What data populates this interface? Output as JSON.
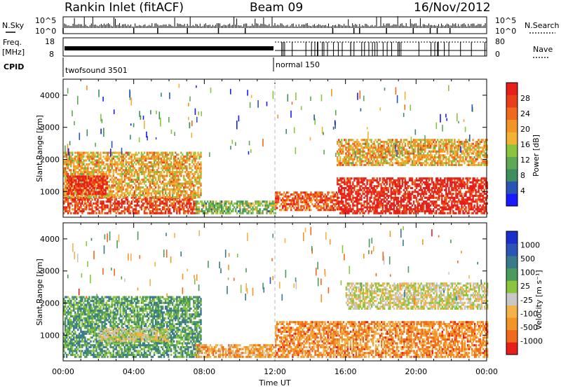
{
  "header": {
    "radar": "Rankin Inlet (fitACF)",
    "beam": "Beam 09",
    "date": "16/Nov/2012"
  },
  "noise_panel": {
    "left_label": "N.Sky",
    "right_label": "N.Search",
    "left_ticks": [
      "10^5",
      "10^0"
    ],
    "right_ticks": [
      "10^5",
      "10^0"
    ]
  },
  "freq_panel": {
    "left_label_line1": "Freq.",
    "left_label_line2": "[MHz]",
    "right_label": "Nave",
    "left_ticks": [
      "18",
      "8"
    ],
    "right_ticks": [
      "80",
      "0"
    ]
  },
  "cpid": {
    "label": "CPID",
    "modes": [
      "twofsound 3501",
      "normal 150"
    ]
  },
  "x_axis": {
    "label": "Time UT",
    "ticks": [
      "00:00",
      "04:00",
      "08:00",
      "12:00",
      "16:00",
      "20:00",
      "00:00"
    ]
  },
  "colors": {
    "power": [
      "#1a1aff",
      "#2a55b5",
      "#3e8e5e",
      "#5fa855",
      "#8bc53f",
      "#f2b233",
      "#f39426",
      "#ef6a1c",
      "#e8401a",
      "#e61f1a"
    ],
    "velocity": [
      "#e61f1a",
      "#ef6a1c",
      "#f39426",
      "#f4b24a",
      "#c8c8c8",
      "#8bc53f",
      "#4c9a5c",
      "#3a7a8a",
      "#2a55b5",
      "#1a2fcc"
    ]
  },
  "chart_data": [
    {
      "type": "heatmap",
      "name": "Power",
      "title": "",
      "xlabel": "Time UT",
      "ylabel": "Slant Range [km]",
      "xlim": [
        0,
        24
      ],
      "ylim": [
        200,
        4500
      ],
      "x_ticks": [
        "00:00",
        "04:00",
        "08:00",
        "12:00",
        "16:00",
        "20:00",
        "00:00"
      ],
      "y_ticks": [
        1000,
        2000,
        3000,
        4000
      ],
      "colorbar": {
        "label": "Power [dB]",
        "ticks": [
          4,
          8,
          12,
          16,
          20,
          24,
          28
        ],
        "range": [
          0,
          30
        ]
      },
      "regions": [
        {
          "t_start": 0.0,
          "t_end": 7.5,
          "r_min": 300,
          "r_max": 800,
          "value": 26
        },
        {
          "t_start": 0.0,
          "t_end": 7.8,
          "r_min": 800,
          "r_max": 2200,
          "value": 18
        },
        {
          "t_start": 0.2,
          "t_end": 2.5,
          "r_min": 900,
          "r_max": 1500,
          "value": 28
        },
        {
          "t_start": 7.5,
          "t_end": 12.0,
          "r_min": 300,
          "r_max": 700,
          "value": 12
        },
        {
          "t_start": 12.0,
          "t_end": 15.5,
          "r_min": 400,
          "r_max": 1000,
          "value": 24
        },
        {
          "t_start": 15.5,
          "t_end": 24.0,
          "r_min": 300,
          "r_max": 1400,
          "value": 28
        },
        {
          "t_start": 15.5,
          "t_end": 24.0,
          "r_min": 1800,
          "r_max": 2600,
          "value": 18
        }
      ]
    },
    {
      "type": "heatmap",
      "name": "Velocity",
      "title": "",
      "xlabel": "Time UT",
      "ylabel": "Slant Range [km]",
      "xlim": [
        0,
        24
      ],
      "ylim": [
        200,
        4500
      ],
      "x_ticks": [
        "00:00",
        "04:00",
        "08:00",
        "12:00",
        "16:00",
        "20:00",
        "00:00"
      ],
      "y_ticks": [
        1000,
        2000,
        3000,
        4000
      ],
      "colorbar": {
        "label": "Velocity [m s⁻¹]",
        "ticks": [
          1000,
          500,
          100,
          25,
          -25,
          -100,
          -500,
          -1000
        ]
      },
      "regions": [
        {
          "t_start": 0.0,
          "t_end": 7.8,
          "r_min": 300,
          "r_max": 2200,
          "value": 300
        },
        {
          "t_start": 2.0,
          "t_end": 6.0,
          "r_min": 800,
          "r_max": 1200,
          "value": 0
        },
        {
          "t_start": 7.5,
          "t_end": 12.0,
          "r_min": 300,
          "r_max": 700,
          "value": -150
        },
        {
          "t_start": 12.0,
          "t_end": 24.0,
          "r_min": 300,
          "r_max": 1400,
          "value": -400
        },
        {
          "t_start": 16.0,
          "t_end": 24.0,
          "r_min": 1800,
          "r_max": 2600,
          "value": 0
        }
      ]
    }
  ]
}
